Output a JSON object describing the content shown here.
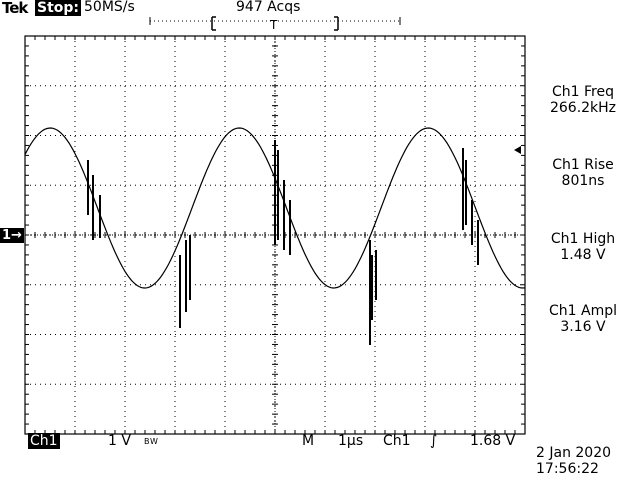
{
  "header": {
    "brand": "Tek",
    "state": "Stop:",
    "sample_rate": "50MS/s",
    "acquisitions": "947 Acqs",
    "trigger_marker": "T"
  },
  "channel_marker": "1→",
  "measurements": [
    {
      "label": "Ch1 Freq",
      "value": "266.2kHz"
    },
    {
      "label": "Ch1 Rise",
      "value": "801ns"
    },
    {
      "label": "Ch1 High",
      "value": "1.48 V"
    },
    {
      "label": "Ch1 Ampl",
      "value": "3.16 V"
    }
  ],
  "status_bar": {
    "channel": "Ch1",
    "volts_div": "1 V",
    "bw_flag": "B W",
    "mode": "M",
    "time_div": "1µs",
    "trigger_source": "Ch1",
    "trigger_slope": "∫",
    "trigger_level": "1.68 V"
  },
  "timestamp": {
    "date": "2 Jan 2020",
    "time": "17:56:22"
  },
  "colors": {
    "trace": "#000000",
    "grid": "#000000",
    "background": "#ffffff"
  }
}
